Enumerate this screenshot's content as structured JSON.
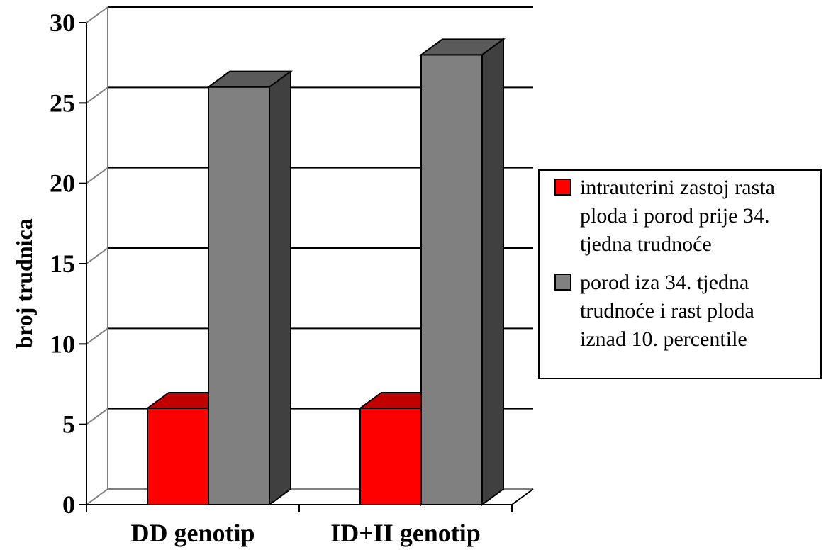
{
  "chart_data": {
    "type": "bar",
    "categories": [
      "DD genotip",
      "ID+II genotip"
    ],
    "series": [
      {
        "name": "intrauterini zastoj rasta ploda i porod prije 34. tjedna trudnoće",
        "legend_lines": [
          "intrauterini zastoj rasta",
          "ploda i porod prije 34.",
          "tjedna trudnoće"
        ],
        "values": [
          6,
          6
        ],
        "color": "#ff0000",
        "top_color": "#c00000",
        "side_color": "#a00000"
      },
      {
        "name": "porod iza 34. tjedna trudnoće i rast ploda iznad 10. percentile",
        "legend_lines": [
          "porod iza 34. tjedna",
          "trudnoće i rast ploda",
          "iznad 10. percentile"
        ],
        "values": [
          26,
          28
        ],
        "color": "#808080",
        "top_color": "#5a5a5a",
        "side_color": "#404040"
      }
    ],
    "ylabel": "broj trudnica",
    "xlabel": "",
    "title": "",
    "ylim": [
      0,
      30
    ],
    "yticks": [
      "0",
      "5",
      "10",
      "15",
      "20",
      "25",
      "30"
    ],
    "grid": true,
    "legend_position": "right",
    "three_d": true
  }
}
